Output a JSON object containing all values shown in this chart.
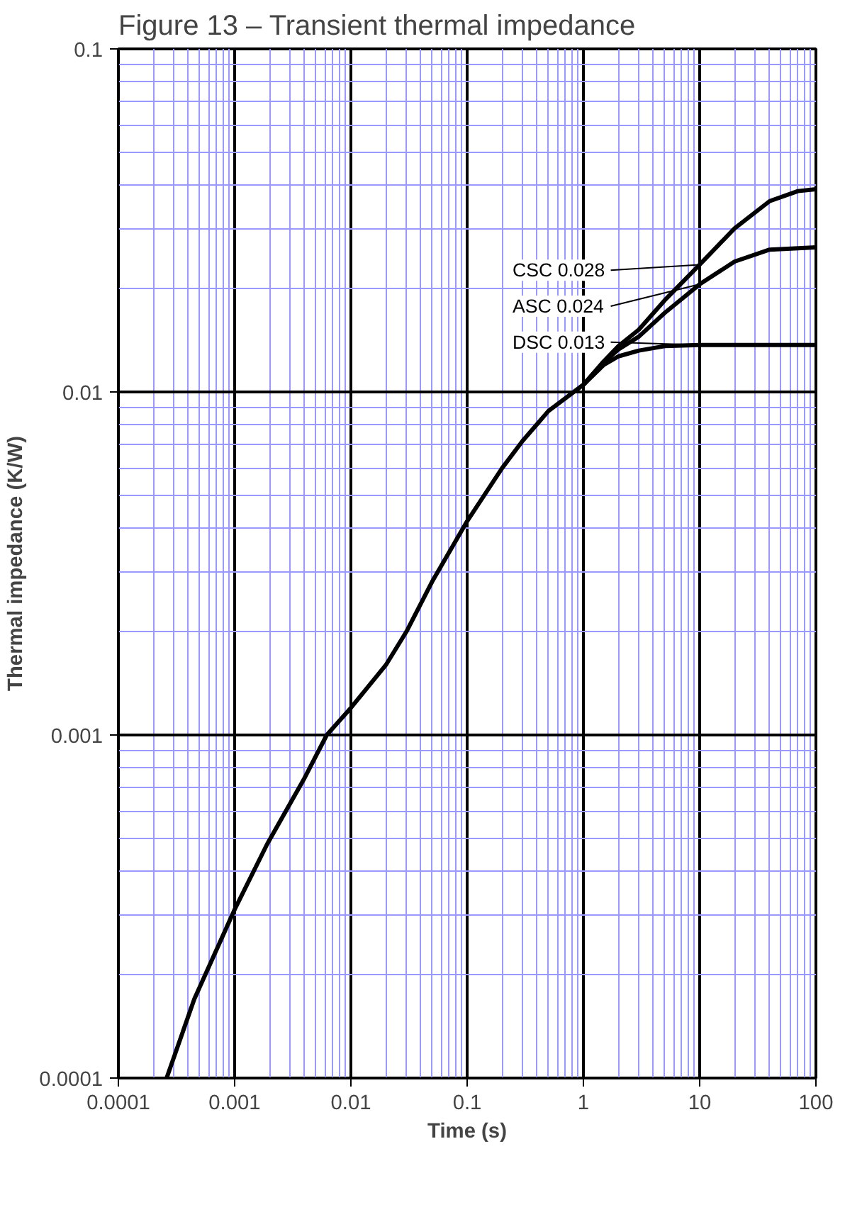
{
  "chart_data": {
    "type": "line",
    "title": "Figure 13 – Transient thermal impedance",
    "xlabel": "Time (s)",
    "ylabel": "Thermal impedance (K/W)",
    "log": "xy",
    "grid": true,
    "legend": "right",
    "marker": "none",
    "line_style": "solid",
    "xlim": [
      0.0001,
      100
    ],
    "xticks": [
      0.0001,
      {
        "value": 0.0002,
        "label": null
      },
      {
        "value": 0.0003,
        "label": null
      },
      {
        "value": 0.0004,
        "label": null
      },
      {
        "value": 0.0005,
        "label": null
      },
      {
        "value": 0.0006,
        "label": null
      },
      {
        "value": 0.0007,
        "label": null
      },
      {
        "value": 0.0008,
        "label": null
      },
      {
        "value": 0.0009,
        "label": null
      },
      0.001,
      {
        "value": 0.002,
        "label": null
      },
      {
        "value": 0.003,
        "label": null
      },
      {
        "value": 0.004,
        "label": null
      },
      {
        "value": 0.005,
        "label": null
      },
      {
        "value": 0.006,
        "label": null
      },
      {
        "value": 0.007,
        "label": null
      },
      {
        "value": 0.008,
        "label": null
      },
      {
        "value": 0.009,
        "label": null
      },
      0.01,
      {
        "value": 0.02,
        "label": null
      },
      {
        "value": 0.03,
        "label": null
      },
      {
        "value": 0.04,
        "label": null
      },
      {
        "value": 0.05,
        "label": null
      },
      {
        "value": 0.06,
        "label": null
      },
      {
        "value": 0.07,
        "label": null
      },
      {
        "value": 0.08,
        "label": null
      },
      {
        "value": 0.09,
        "label": null
      },
      0.1,
      {
        "value": 0.2,
        "label": null
      },
      {
        "value": 0.3,
        "label": null
      },
      {
        "value": 0.4,
        "label": null
      },
      {
        "value": 0.5,
        "label": null
      },
      {
        "value": 0.6,
        "label": null
      },
      {
        "value": 0.7,
        "label": null
      },
      {
        "value": 0.8,
        "label": null
      },
      {
        "value": 0.9,
        "label": null
      },
      1,
      {
        "value": 2,
        "label": null
      },
      {
        "value": 3,
        "label": null
      },
      {
        "value": 4,
        "label": null
      },
      {
        "value": 5,
        "label": null
      },
      {
        "value": 6,
        "label": null
      },
      {
        "value": 7,
        "label": null
      },
      {
        "value": 8,
        "label": null
      },
      {
        "value": 9,
        "label": null
      },
      10,
      {
        "value": 20,
        "label": null
      },
      {
        "value": 30,
        "label": null
      },
      {
        "value": 40,
        "label": null
      },
      {
        "value": 50,
        "label": null
      },
      {
        "value": 60,
        "label": null
      },
      {
        "value": 70,
        "label": null
      },
      {
        "value": 80,
        "label": null
      },
      {
        "value": 90,
        "label": null
      },
      100
    ],
    "ylim": [
      0.0001,
      0.1
    ],
    "yticks": [
      0.0001,
      {
        "value": 0.0002,
        "label": null
      },
      {
        "value": 0.0003,
        "label": null
      },
      {
        "value": 0.0004,
        "label": null
      },
      {
        "value": 0.0005,
        "label": null
      },
      {
        "value": 0.0006,
        "label": null
      },
      {
        "value": 0.0007,
        "label": null
      },
      {
        "value": 0.0008,
        "label": null
      },
      {
        "value": 0.0009,
        "label": null
      },
      0.001,
      {
        "value": 0.002,
        "label": null
      },
      {
        "value": 0.003,
        "label": null
      },
      {
        "value": 0.004,
        "label": null
      },
      {
        "value": 0.005,
        "label": null
      },
      {
        "value": 0.006,
        "label": null
      },
      {
        "value": 0.007,
        "label": null
      },
      {
        "value": 0.008,
        "label": null
      },
      {
        "value": 0.009,
        "label": null
      },
      0.01,
      {
        "value": 0.02,
        "label": null
      },
      {
        "value": 0.03,
        "label": null
      },
      {
        "value": 0.04,
        "label": null
      },
      {
        "value": 0.05,
        "label": null
      },
      {
        "value": 0.06,
        "label": null
      },
      {
        "value": 0.07,
        "label": null
      },
      {
        "value": 0.08,
        "label": null
      },
      {
        "value": 0.09,
        "label": null
      },
      0.1
    ],
    "series": [
      {
        "name": "CSC 0.028",
        "color": "#000000",
        "x": [
          0.00026,
          0.00045,
          0.001,
          0.0019,
          0.004,
          0.0062,
          0.01,
          0.02,
          0.03,
          0.05,
          0.1,
          0.2,
          0.3,
          0.5,
          1,
          1.5,
          2,
          3,
          5,
          10,
          20,
          40,
          70,
          100
        ],
        "values": [
          0.0001,
          0.00017,
          0.00031,
          0.00048,
          0.00075,
          0.001,
          0.0012,
          0.0016,
          0.002,
          0.0028,
          0.0042,
          0.006,
          0.0072,
          0.0088,
          0.0105,
          0.0123,
          0.0136,
          0.0152,
          0.0185,
          0.0235,
          0.03,
          0.036,
          0.0385,
          0.039
        ]
      },
      {
        "name": "ASC 0.024",
        "color": "#000000",
        "x": [
          1,
          1.5,
          2,
          3,
          5,
          10,
          20,
          40,
          100
        ],
        "values": [
          0.0105,
          0.0122,
          0.0133,
          0.0145,
          0.017,
          0.0206,
          0.024,
          0.026,
          0.0264
        ]
      },
      {
        "name": "DSC 0.013",
        "color": "#000000",
        "x": [
          1,
          1.5,
          2,
          3,
          5,
          10,
          30,
          100
        ],
        "values": [
          0.0105,
          0.012,
          0.0127,
          0.0132,
          0.0136,
          0.0137,
          0.0137,
          0.0137
        ]
      }
    ]
  }
}
